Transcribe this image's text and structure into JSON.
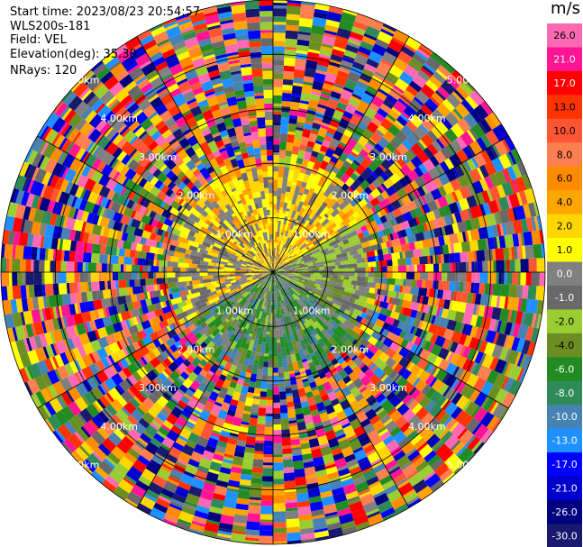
{
  "info": {
    "start_time": "Start time: 2023/08/23 20:54:57",
    "instrument": "WLS200s-181",
    "field": "Field: VEL",
    "elevation": "Elevation(deg): 35.30",
    "nrays": "NRays: 120"
  },
  "colorbar": {
    "unit": "m/s",
    "labels": [
      "26.0",
      "21.0",
      "17.0",
      "13.0",
      "10.0",
      "8.0",
      "6.0",
      "4.0",
      "2.0",
      "1.0",
      "0.0",
      "-1.0",
      "-2.0",
      "-4.0",
      "-6.0",
      "-8.0",
      "-10.0",
      "-13.0",
      "-17.0",
      "-21.0",
      "-26.0",
      "-30.0"
    ],
    "colors": [
      "#ff69b4",
      "#ff1493",
      "#ff0000",
      "#ff3300",
      "#ff5533",
      "#ff7f50",
      "#ff8c00",
      "#ffa500",
      "#ffd700",
      "#ffff00",
      "#808080",
      "#696969",
      "#9acd32",
      "#6b8e23",
      "#228b22",
      "#2e8b57",
      "#4682b4",
      "#1e90ff",
      "#0000ff",
      "#0000cd",
      "#000080",
      "#191970"
    ]
  },
  "chart_data": {
    "type": "heatmap",
    "title": "",
    "projection": "PPI (polar)",
    "field": "VEL",
    "units": "m/s",
    "range_rings_km": [
      1.0,
      2.0,
      3.0,
      4.0,
      5.0
    ],
    "ring_labels": [
      "1.00km",
      "2.00km",
      "3.00km",
      "4.00km",
      "5.00km"
    ],
    "spokes_deg": [
      0,
      30,
      60,
      90,
      120,
      150,
      180,
      210,
      240,
      270,
      300,
      330
    ],
    "nrays": 120,
    "max_range_km": 5.0,
    "pattern": {
      "inner_valid_range_km": 1.6,
      "north_sector": "positive 1.0 to 6.0 m/s (yellow/orange)",
      "south_sector": "negative -2.0 to -10.0 m/s (green/blue)",
      "outer": "noise across full colour scale"
    }
  }
}
